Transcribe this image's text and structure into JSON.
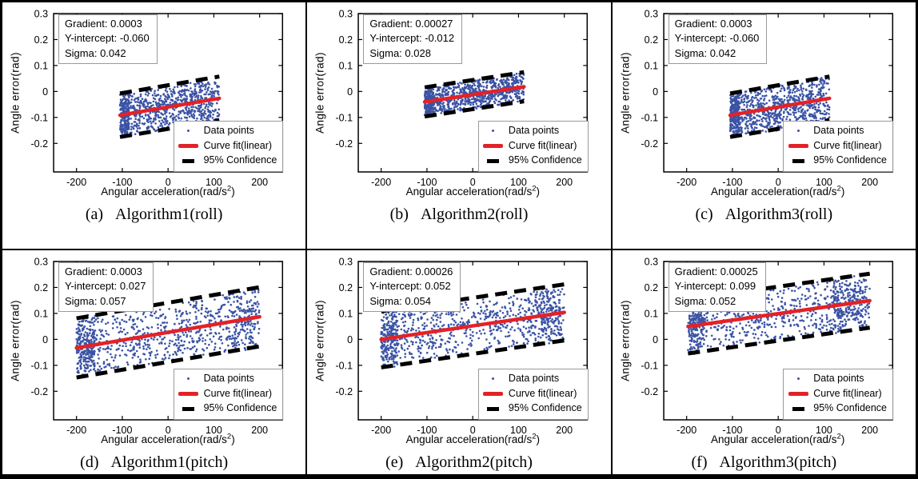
{
  "figure": {
    "background": "#ffffff",
    "border_color": "#000000"
  },
  "colors": {
    "points": "#3B53A5",
    "fit": "#E32227",
    "confidence": "#000000",
    "axis": "#000000",
    "box_border": "#9a9a9a"
  },
  "axes": {
    "xlabel_main": "Angular acceleration(rad/s",
    "xlabel_sup": "2",
    "xlabel_end": ")"
  },
  "legend": {
    "items": [
      {
        "label": "Data points",
        "marker": "dot"
      },
      {
        "label": "Curve fit(linear)",
        "marker": "line"
      },
      {
        "label": "95% Confidence",
        "marker": "dash"
      }
    ]
  },
  "chart_data": {
    "type": "scatter",
    "title": "",
    "xlabel": "Angular acceleration(rad/s^2)",
    "ylabel": "Angle error(rad)",
    "xlim": [
      -250,
      250
    ],
    "ylim": [
      -0.31,
      0.3
    ],
    "x_ticks": [
      -200,
      -100,
      0,
      100,
      200
    ],
    "y_ticks": [
      0.3,
      0.2,
      0.1,
      0,
      -0.1,
      -0.2
    ],
    "grid": false,
    "legend_position": "lower right",
    "legend_entries": [
      "Data points",
      "Curve fit(linear)",
      "95% Confidence"
    ],
    "confidence_band_halfwidth_sigmas": 2,
    "charts": [
      {
        "id": "a",
        "caption_index": "(a)",
        "caption_label": "Algorithm1(roll)",
        "stats_lines": [
          "Gradient: 0.0003",
          "Y-intercept: -0.060",
          "Sigma: 0.042"
        ],
        "gradient": 0.0003,
        "y_intercept": -0.06,
        "sigma": 0.042,
        "x_data_min": -105,
        "x_data_max": 112,
        "n_points": 950,
        "seed": 7,
        "clusters": [
          [
            0.0,
            0.09,
            0.16
          ]
        ]
      },
      {
        "id": "b",
        "caption_index": "(b)",
        "caption_label": "Algorithm2(roll)",
        "stats_lines": [
          "Gradient: 0.00027",
          "Y-intercept: -0.012",
          "Sigma: 0.028"
        ],
        "gradient": 0.00027,
        "y_intercept": -0.012,
        "sigma": 0.028,
        "x_data_min": -105,
        "x_data_max": 112,
        "n_points": 950,
        "seed": 13,
        "clusters": [
          [
            0.0,
            0.09,
            0.16
          ]
        ]
      },
      {
        "id": "c",
        "caption_index": "(c)",
        "caption_label": "Algorithm3(roll)",
        "stats_lines": [
          "Gradient: 0.0003",
          "Y-intercept: -0.060",
          "Sigma: 0.042"
        ],
        "gradient": 0.0003,
        "y_intercept": -0.06,
        "sigma": 0.042,
        "x_data_min": -105,
        "x_data_max": 112,
        "n_points": 950,
        "seed": 23,
        "clusters": [
          [
            0.0,
            0.09,
            0.16
          ]
        ]
      },
      {
        "id": "d",
        "caption_index": "(d)",
        "caption_label": "Algorithm1(pitch)",
        "stats_lines": [
          "Gradient: 0.0003",
          "Y-intercept: 0.027",
          "Sigma: 0.057"
        ],
        "gradient": 0.0003,
        "y_intercept": 0.027,
        "sigma": 0.057,
        "x_data_min": -200,
        "x_data_max": 200,
        "n_points": 1000,
        "seed": 31,
        "clusters": [
          [
            0.0,
            0.1,
            0.2
          ],
          [
            0.85,
            0.13,
            0.1
          ]
        ]
      },
      {
        "id": "e",
        "caption_index": "(e)",
        "caption_label": "Algorithm2(pitch)",
        "stats_lines": [
          "Gradient: 0.00026",
          "Y-intercept: 0.052",
          "Sigma: 0.054"
        ],
        "gradient": 0.00026,
        "y_intercept": 0.052,
        "sigma": 0.054,
        "x_data_min": -200,
        "x_data_max": 200,
        "n_points": 1000,
        "seed": 41,
        "clusters": [
          [
            0.0,
            0.09,
            0.2
          ],
          [
            0.84,
            0.14,
            0.13
          ]
        ]
      },
      {
        "id": "f",
        "caption_index": "(f)",
        "caption_label": "Algorithm3(pitch)",
        "stats_lines": [
          "Gradient: 0.00025",
          "Y-intercept: 0.099",
          "Sigma: 0.052"
        ],
        "gradient": 0.00025,
        "y_intercept": 0.099,
        "sigma": 0.052,
        "x_data_min": -197,
        "x_data_max": 200,
        "n_points": 1000,
        "seed": 53,
        "clusters": [
          [
            0.0,
            0.09,
            0.18
          ],
          [
            0.8,
            0.18,
            0.18
          ]
        ]
      }
    ]
  }
}
